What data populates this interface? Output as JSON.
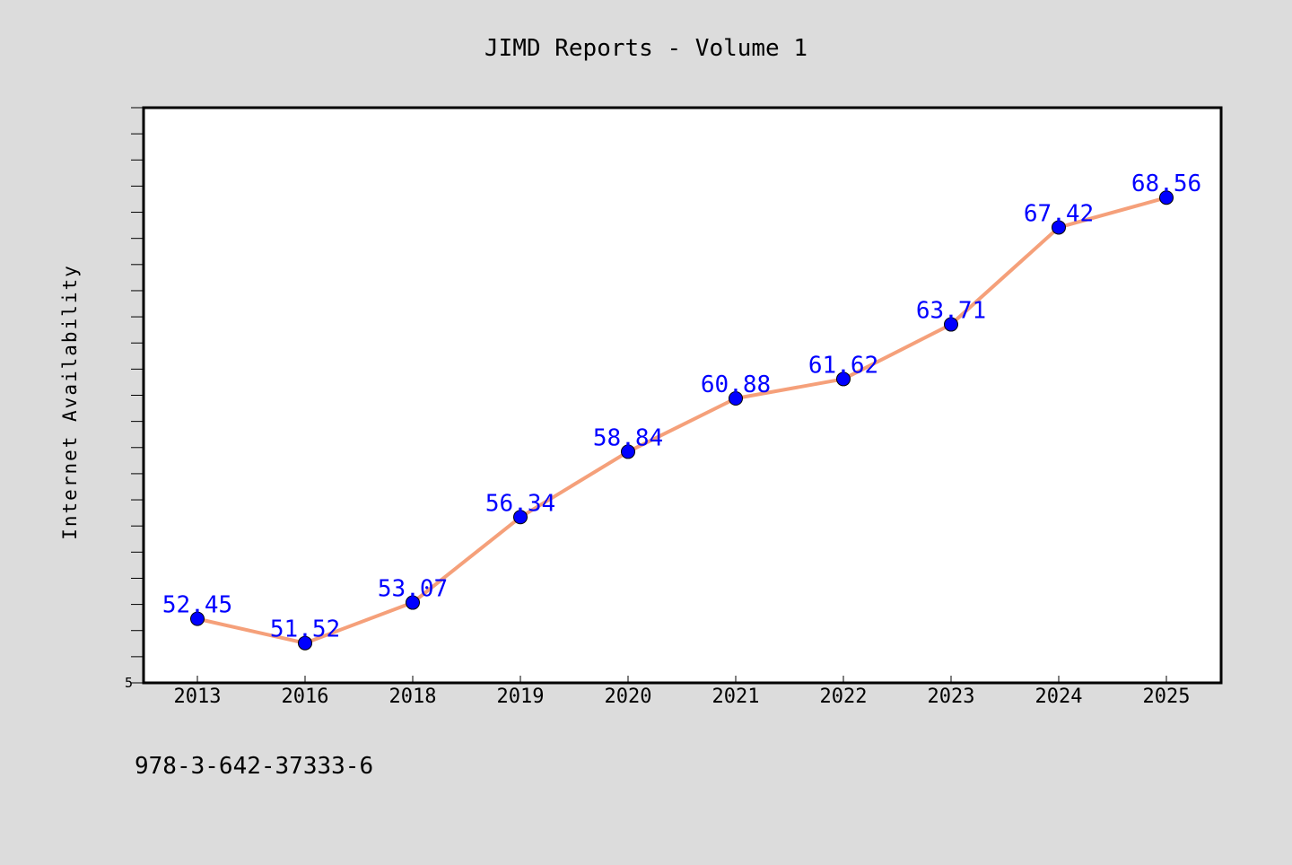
{
  "chart_data": {
    "type": "line",
    "title": "JIMD Reports - Volume 1",
    "xlabel": "",
    "ylabel": "Internet Availability",
    "categories": [
      "2013",
      "2016",
      "2018",
      "2019",
      "2020",
      "2021",
      "2022",
      "2023",
      "2024",
      "2025"
    ],
    "values": [
      52.45,
      51.52,
      53.07,
      56.34,
      58.84,
      60.88,
      61.62,
      63.71,
      67.42,
      68.56
    ],
    "data_labels": [
      "52.45",
      "51.52",
      "53.07",
      "56.34",
      "58.84",
      "60.88",
      "61.62",
      "63.71",
      "67.42",
      "68.56"
    ],
    "ylim": [
      50,
      72
    ],
    "y_tick_labels_shown": [
      "5"
    ],
    "grid": false,
    "legend": "none",
    "colors": {
      "line": "#f5a07a",
      "marker": "#0000ff",
      "data_label": "#0000ff",
      "plot_background": "#ffffff",
      "figure_background": "#dcdcdc"
    }
  },
  "footnote": "978-3-642-37333-6"
}
